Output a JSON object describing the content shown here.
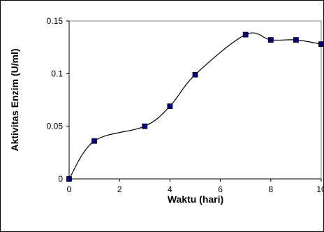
{
  "chart_data": {
    "type": "line",
    "title": "",
    "xlabel": "Waktu (hari)",
    "ylabel": "Aktivitas Enzim (U/ml)",
    "xlim": [
      0,
      10
    ],
    "ylim": [
      0,
      0.15
    ],
    "x_ticks": [
      "0",
      "2",
      "4",
      "6",
      "8",
      "10"
    ],
    "y_ticks": [
      "0",
      "0.05",
      "0.1",
      "0.15"
    ],
    "grid": false,
    "legend": "none",
    "series": [
      {
        "x": [
          0,
          1,
          3,
          4,
          5,
          7,
          8,
          9,
          10
        ],
        "values": [
          0.0,
          0.036,
          0.05,
          0.069,
          0.099,
          0.137,
          0.132,
          0.132,
          0.128
        ],
        "line_color": "#000000",
        "marker": "square",
        "marker_color": "#000080"
      }
    ]
  }
}
